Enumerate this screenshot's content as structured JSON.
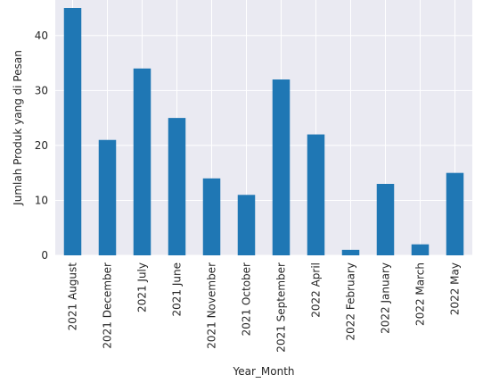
{
  "chart_data": {
    "type": "bar",
    "title": "",
    "xlabel": "Year_Month",
    "ylabel": "Jumlah Produk yang di Pesan",
    "categories": [
      "2021 August",
      "2021 December",
      "2021 July",
      "2021 June",
      "2021 November",
      "2021 October",
      "2021 September",
      "2022 April",
      "2022 February",
      "2022 January",
      "2022 March",
      "2022 May"
    ],
    "values": [
      45,
      21,
      34,
      25,
      14,
      11,
      32,
      22,
      1,
      13,
      2,
      15
    ],
    "yticks": [
      0,
      10,
      20,
      30,
      40
    ],
    "ylim": [
      0,
      47
    ],
    "grid": true,
    "colors": {
      "bar": "#1f77b4",
      "plot_background": "#eaeaf2",
      "grid": "#ffffff"
    }
  }
}
